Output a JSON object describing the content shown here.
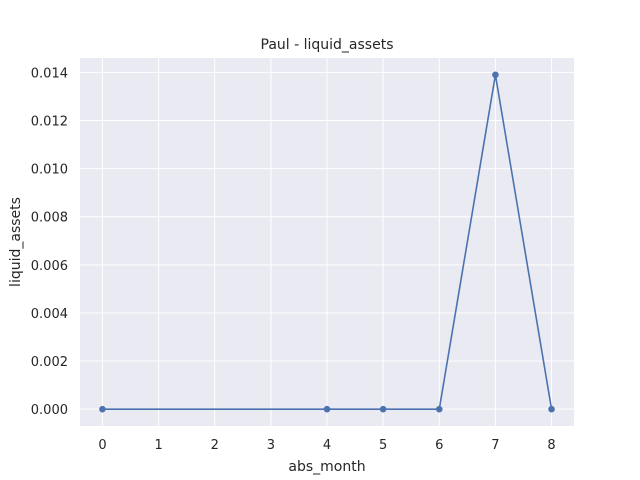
{
  "chart_data": {
    "type": "line",
    "title": "Paul - liquid_assets",
    "xlabel": "abs_month",
    "ylabel": "liquid_assets",
    "x": [
      0,
      4,
      5,
      6,
      7,
      8
    ],
    "series": [
      {
        "values": [
          0.0,
          0.0,
          0.0,
          0.0,
          0.0139,
          0.0
        ]
      }
    ],
    "xlim": [
      -0.4,
      8.4
    ],
    "ylim": [
      -0.0007,
      0.0146
    ],
    "x_ticks": [
      0,
      1,
      2,
      3,
      4,
      5,
      6,
      7,
      8
    ],
    "x_tick_labels": [
      "0",
      "1",
      "2",
      "3",
      "4",
      "5",
      "6",
      "7",
      "8"
    ],
    "y_ticks": [
      0.0,
      0.002,
      0.004,
      0.006,
      0.008,
      0.01,
      0.012,
      0.014
    ],
    "y_tick_labels": [
      "0.000",
      "0.002",
      "0.004",
      "0.006",
      "0.008",
      "0.010",
      "0.012",
      "0.014"
    ],
    "grid": true,
    "colors": {
      "background": "#eaeaf2",
      "grid": "#ffffff",
      "line": "#4c72b0"
    }
  }
}
